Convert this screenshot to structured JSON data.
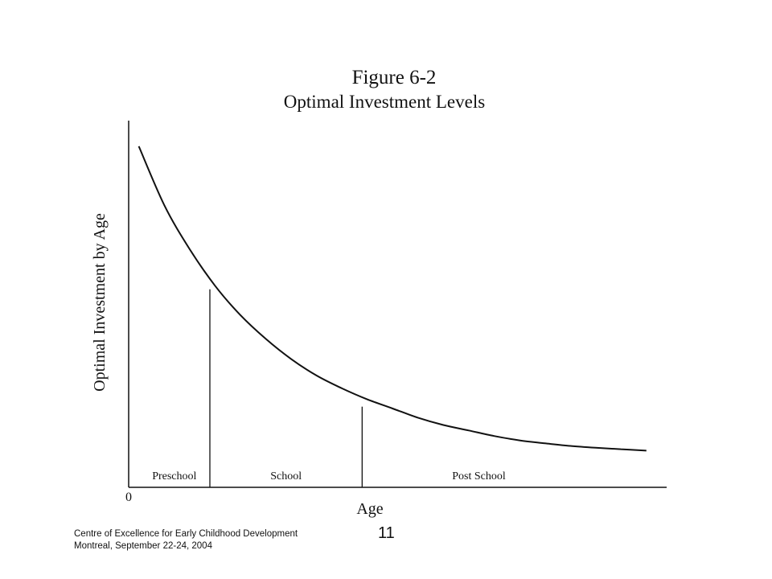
{
  "chart_data": {
    "type": "line",
    "title": "Figure 6-2",
    "subtitle": "Optimal Investment Levels",
    "xlabel": "Age",
    "ylabel": "Optimal Investment by Age",
    "x_origin_label": "0",
    "grid": false,
    "legend": "none",
    "line_color": "#111111",
    "series": [
      {
        "x": [
          0.0,
          0.05,
          0.1,
          0.15,
          0.2,
          0.25,
          0.3,
          0.35,
          0.4,
          0.45,
          0.5,
          0.55,
          0.6,
          0.65,
          0.7,
          0.75,
          0.8,
          0.85,
          0.9,
          0.95,
          1.0
        ],
        "values": [
          0.93,
          0.77,
          0.65,
          0.55,
          0.47,
          0.405,
          0.35,
          0.305,
          0.27,
          0.24,
          0.215,
          0.19,
          0.17,
          0.155,
          0.14,
          0.128,
          0.12,
          0.113,
          0.108,
          0.104,
          0.1
        ]
      }
    ],
    "dividers": [
      {
        "x": 0.14,
        "y": 0.54
      },
      {
        "x": 0.44,
        "y": 0.22
      }
    ],
    "regions": [
      {
        "label": "Preschool",
        "x": 0.07
      },
      {
        "label": "School",
        "x": 0.29
      },
      {
        "label": "Post School",
        "x": 0.67
      }
    ],
    "xlim": [
      -0.02,
      1.04
    ],
    "ylim": [
      0,
      1
    ]
  },
  "footer": {
    "line1": "Centre of Excellence for Early Childhood Development",
    "line2": "Montreal, September 22-24, 2004"
  },
  "page_number": "11"
}
